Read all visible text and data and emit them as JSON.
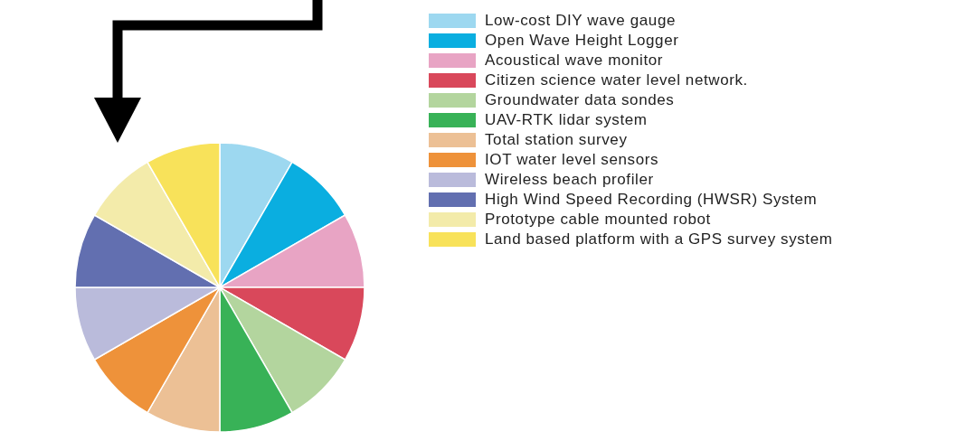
{
  "chart_data": {
    "type": "pie",
    "categories": [
      "Low-cost DIY wave gauge",
      "Open Wave Height Logger",
      "Acoustical wave monitor",
      "Citizen science water level network.",
      "Groundwater data sondes",
      "UAV-RTK lidar system",
      "Total station survey",
      "IOT water level sensors",
      "Wireless beach profiler",
      "High Wind Speed Recording (HWSR) System",
      "Prototype cable mounted robot",
      "Land based platform with a GPS survey system"
    ],
    "values": [
      8.33,
      8.33,
      8.33,
      8.33,
      8.33,
      8.33,
      8.33,
      8.33,
      8.33,
      8.33,
      8.33,
      8.33
    ],
    "colors": [
      "#9dd8f0",
      "#0aaee0",
      "#e8a4c4",
      "#d9485b",
      "#b3d59e",
      "#38b257",
      "#ecc095",
      "#ee923a",
      "#babbdb",
      "#626fb0",
      "#f3ebaa",
      "#f8e25a"
    ],
    "legend": "top right"
  }
}
